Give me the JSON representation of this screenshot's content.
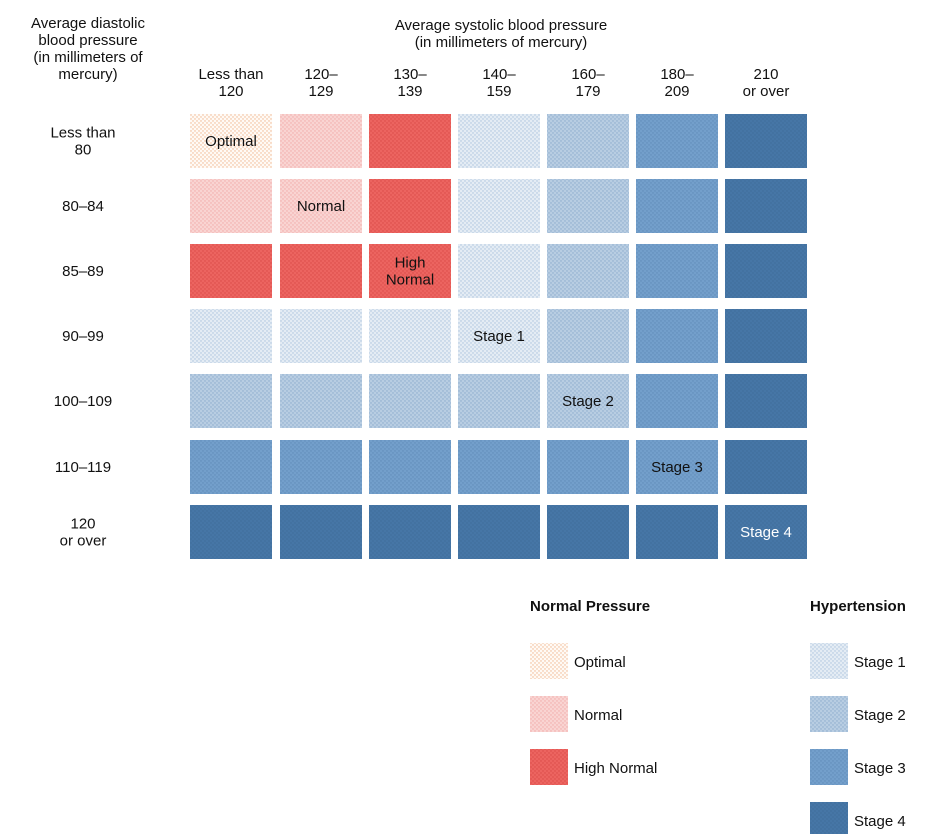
{
  "chart_data": {
    "type": "heatmap",
    "x_title_lines": [
      "Average systolic blood pressure",
      "(in millimeters of mercury)"
    ],
    "y_title_lines": [
      "Average diastolic",
      "blood pressure",
      "(in millimeters of",
      "mercury)"
    ],
    "columns": [
      {
        "lines": [
          "Less than",
          "120"
        ]
      },
      {
        "lines": [
          "120–",
          "129"
        ]
      },
      {
        "lines": [
          "130–",
          "139"
        ]
      },
      {
        "lines": [
          "140–",
          "159"
        ]
      },
      {
        "lines": [
          "160–",
          "179"
        ]
      },
      {
        "lines": [
          "180–",
          "209"
        ]
      },
      {
        "lines": [
          "210",
          "or over"
        ]
      }
    ],
    "rows": [
      {
        "lines": [
          "Less than",
          "80"
        ]
      },
      {
        "lines": [
          "80–84"
        ]
      },
      {
        "lines": [
          "85–89"
        ]
      },
      {
        "lines": [
          "90–99"
        ]
      },
      {
        "lines": [
          "100–109"
        ]
      },
      {
        "lines": [
          "110–119"
        ]
      },
      {
        "lines": [
          "120",
          "or over"
        ]
      }
    ],
    "categories": {
      "optimal": {
        "label": "Optimal",
        "fill": "#fffaf5",
        "dots": "#f0b48c"
      },
      "normal": {
        "label": "Normal",
        "fill": "#f9d4d2",
        "dots": "#f0a8a6"
      },
      "high_normal": {
        "label": "High Normal",
        "fill": "#ec6460",
        "dots": "#d94a46"
      },
      "stage1": {
        "label": "Stage 1",
        "fill": "#e4ecf4",
        "dots": "#a9c2dc"
      },
      "stage2": {
        "label": "Stage 2",
        "fill": "#b8cde2",
        "dots": "#8aa9cb"
      },
      "stage3": {
        "label": "Stage 3",
        "fill": "#739fcb",
        "dots": "#5f8bb8"
      },
      "stage4": {
        "label": "Stage 4",
        "fill": "#4676a6",
        "dots": "#3e6c99"
      }
    },
    "grid": [
      [
        "optimal",
        "normal",
        "high_normal",
        "stage1",
        "stage2",
        "stage3",
        "stage4"
      ],
      [
        "normal",
        "normal",
        "high_normal",
        "stage1",
        "stage2",
        "stage3",
        "stage4"
      ],
      [
        "high_normal",
        "high_normal",
        "high_normal",
        "stage1",
        "stage2",
        "stage3",
        "stage4"
      ],
      [
        "stage1",
        "stage1",
        "stage1",
        "stage1",
        "stage2",
        "stage3",
        "stage4"
      ],
      [
        "stage2",
        "stage2",
        "stage2",
        "stage2",
        "stage2",
        "stage3",
        "stage4"
      ],
      [
        "stage3",
        "stage3",
        "stage3",
        "stage3",
        "stage3",
        "stage3",
        "stage4"
      ],
      [
        "stage4",
        "stage4",
        "stage4",
        "stage4",
        "stage4",
        "stage4",
        "stage4"
      ]
    ],
    "cell_labels": [
      {
        "row": 0,
        "col": 0,
        "lines": [
          "Optimal"
        ]
      },
      {
        "row": 1,
        "col": 1,
        "lines": [
          "Normal"
        ]
      },
      {
        "row": 2,
        "col": 2,
        "lines": [
          "High",
          "Normal"
        ]
      },
      {
        "row": 3,
        "col": 3,
        "lines": [
          "Stage 1"
        ]
      },
      {
        "row": 4,
        "col": 4,
        "lines": [
          "Stage 2"
        ]
      },
      {
        "row": 5,
        "col": 5,
        "lines": [
          "Stage 3"
        ]
      },
      {
        "row": 6,
        "col": 6,
        "lines": [
          "Stage 4"
        ],
        "light": true
      }
    ],
    "legend_groups": [
      {
        "title": "Normal Pressure",
        "items": [
          "optimal",
          "normal",
          "high_normal"
        ]
      },
      {
        "title": "Hypertension",
        "items": [
          "stage1",
          "stage2",
          "stage3",
          "stage4"
        ]
      }
    ]
  }
}
